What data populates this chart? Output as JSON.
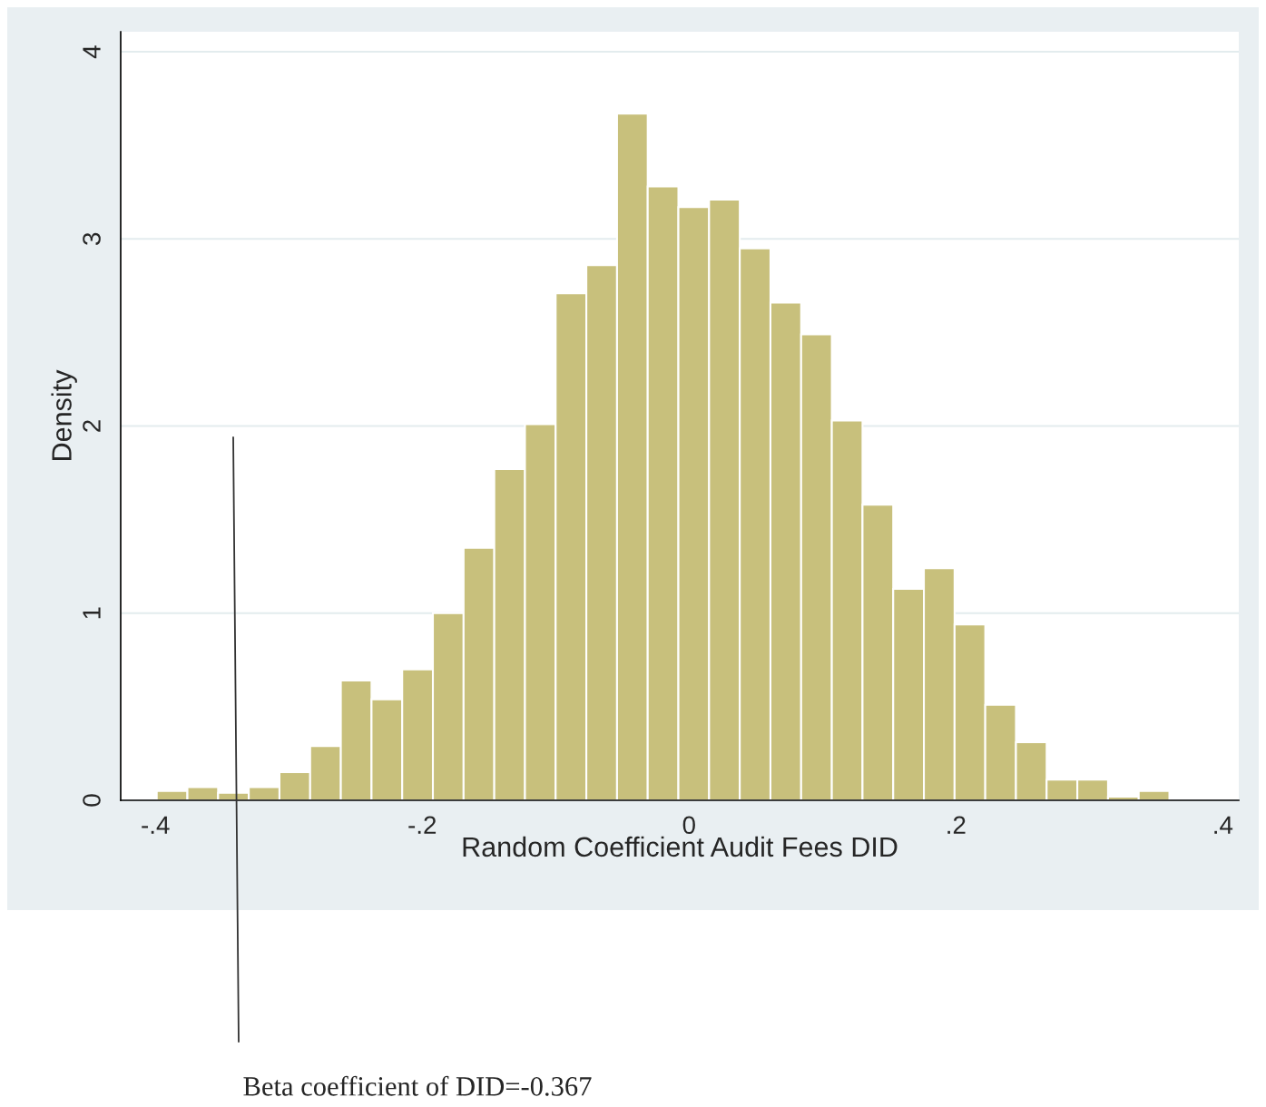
{
  "chart_data": {
    "type": "histogram",
    "xlabel": "Random Coefficient Audit Fees DID",
    "ylabel": "Density",
    "bins": [
      -0.399,
      -0.376,
      -0.353,
      -0.33,
      -0.307,
      -0.284,
      -0.261,
      -0.238,
      -0.215,
      -0.192,
      -0.169,
      -0.146,
      -0.123,
      -0.1,
      -0.077,
      -0.054,
      -0.031,
      -0.008,
      0.015,
      0.038,
      0.061,
      0.084,
      0.107,
      0.13,
      0.153,
      0.176,
      0.199,
      0.222,
      0.245,
      0.268,
      0.291,
      0.314,
      0.337,
      0.36
    ],
    "values": [
      0.05,
      0.07,
      0.04,
      0.07,
      0.15,
      0.29,
      0.64,
      0.54,
      0.7,
      1.0,
      1.35,
      1.77,
      2.01,
      2.71,
      2.86,
      3.67,
      3.28,
      3.17,
      3.21,
      2.95,
      2.66,
      2.49,
      2.03,
      1.58,
      1.13,
      1.24,
      0.94,
      0.51,
      0.31,
      0.11,
      0.11,
      0.02,
      0.05
    ],
    "color": "#c8c07c",
    "xlim": [
      -0.426,
      0.412
    ],
    "ylim": [
      0,
      4.107
    ],
    "xticks": [
      {
        "value": -0.4,
        "label": "-.4"
      },
      {
        "value": -0.2,
        "label": "-.2"
      },
      0,
      {
        "value": 0.2,
        "label": ".2"
      },
      {
        "value": 0.4,
        "label": ".4"
      }
    ],
    "yticks": [
      0,
      1,
      2,
      3,
      4
    ],
    "grid": "y",
    "annotations": [
      "Beta coefficient of DID=-0.367"
    ]
  }
}
